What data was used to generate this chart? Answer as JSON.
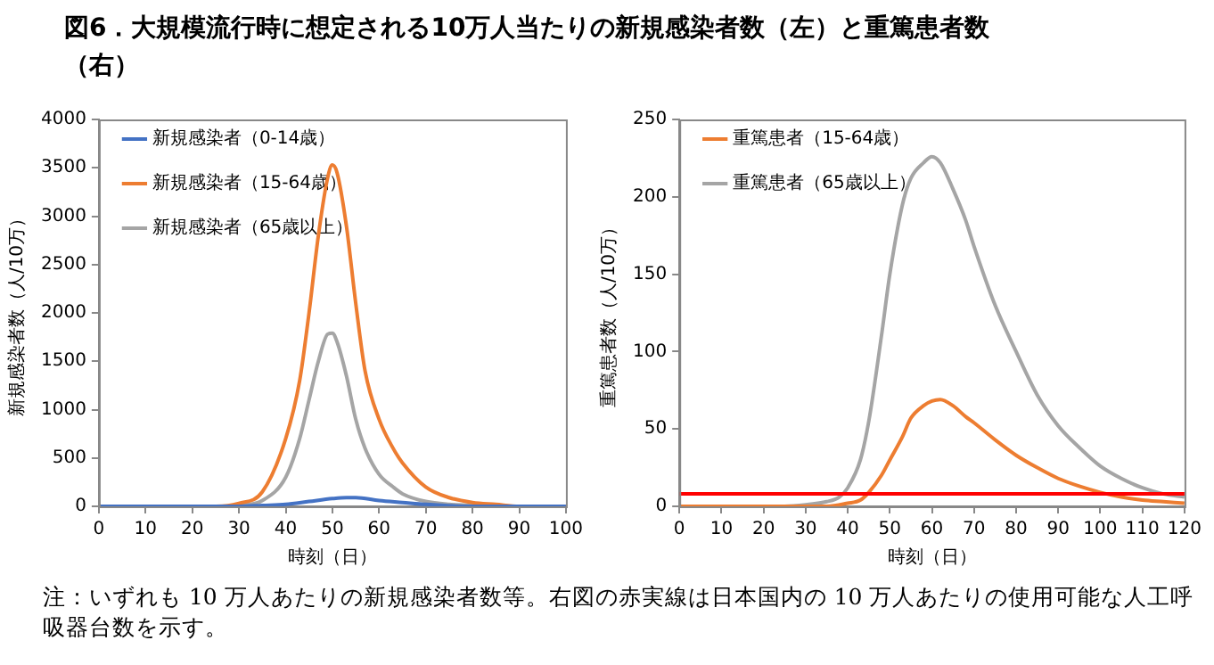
{
  "chart_data": [
    {
      "type": "line",
      "title": "図6．大規模流行時に想定される10万人当たりの新規感染者数（左）と重篤患者数（右）",
      "xlabel": "時刻（日）",
      "ylabel": "新規感染者数（人/10万）",
      "xlim": [
        0,
        100
      ],
      "xticks": [
        0,
        10,
        20,
        30,
        40,
        50,
        60,
        70,
        80,
        90,
        100
      ],
      "ylim": [
        0,
        4000
      ],
      "yticks": [
        0,
        500,
        1000,
        1500,
        2000,
        2500,
        3000,
        3500,
        4000
      ],
      "grid": false,
      "legend": "top left",
      "marker": "none",
      "line_style": "solid",
      "series": [
        {
          "name": "新規感染者（0-14歳）",
          "color": "#4472c4",
          "x": [
            0,
            30,
            35,
            40,
            45,
            50,
            53,
            55,
            60,
            65,
            70,
            80,
            90,
            100
          ],
          "values": [
            0,
            0,
            10,
            20,
            50,
            80,
            90,
            90,
            60,
            40,
            20,
            0,
            0,
            0
          ]
        },
        {
          "name": "新規感染者（15-64歳）",
          "color": "#ed7d31",
          "x": [
            0,
            25,
            30,
            35,
            40,
            43,
            45,
            47,
            49,
            50,
            51,
            53,
            55,
            57,
            60,
            63,
            65,
            70,
            75,
            80,
            85,
            90,
            100
          ],
          "values": [
            0,
            0,
            30,
            150,
            700,
            1300,
            2000,
            2800,
            3400,
            3530,
            3450,
            2900,
            2100,
            1400,
            900,
            600,
            450,
            200,
            90,
            40,
            20,
            0,
            0
          ]
        },
        {
          "name": "新規感染者（65歳以上）",
          "color": "#a5a5a5",
          "x": [
            0,
            25,
            30,
            35,
            40,
            43,
            45,
            47,
            49,
            50,
            51,
            53,
            55,
            57,
            60,
            63,
            65,
            70,
            75,
            80,
            90,
            100
          ],
          "values": [
            0,
            0,
            10,
            60,
            300,
            700,
            1100,
            1500,
            1780,
            1790,
            1700,
            1350,
            900,
            600,
            330,
            200,
            130,
            50,
            20,
            10,
            0,
            0
          ]
        }
      ]
    },
    {
      "type": "line",
      "xlabel": "時刻（日）",
      "ylabel": "重篤患者数（人/10万）",
      "xlim": [
        0,
        120
      ],
      "xticks": [
        0,
        10,
        20,
        30,
        40,
        50,
        60,
        70,
        80,
        90,
        100,
        110,
        120
      ],
      "ylim": [
        0,
        250
      ],
      "yticks": [
        0,
        50,
        100,
        150,
        200,
        250
      ],
      "grid": false,
      "legend": "top left",
      "marker": "none",
      "line_style": "solid",
      "annotations": [
        "注：いずれも 10 万人あたりの新規感染者数等。右図の赤実線は日本国内の 10 万人あたりの使用可能な人工呼吸器台数を示す。"
      ],
      "ref_lines": [
        {
          "axis": "y",
          "value": 8,
          "color": "#ff0000",
          "line_style": "solid"
        }
      ],
      "series": [
        {
          "name": "重篤患者（15-64歳）",
          "color": "#ed7d31",
          "x": [
            0,
            30,
            35,
            40,
            43,
            45,
            48,
            50,
            53,
            55,
            58,
            60,
            62,
            65,
            68,
            70,
            75,
            80,
            85,
            90,
            95,
            100,
            105,
            110,
            115,
            120
          ],
          "values": [
            0,
            0,
            0,
            2,
            4,
            9,
            20,
            30,
            45,
            57,
            65,
            68,
            69,
            65,
            58,
            54,
            43,
            33,
            25,
            18,
            13,
            9,
            6,
            4,
            3,
            2
          ]
        },
        {
          "name": "重篤患者（65歳以上）",
          "color": "#a5a5a5",
          "x": [
            0,
            25,
            30,
            35,
            38,
            40,
            43,
            45,
            48,
            50,
            53,
            55,
            58,
            60,
            62,
            65,
            68,
            70,
            75,
            80,
            85,
            90,
            95,
            100,
            105,
            110,
            115,
            120
          ],
          "values": [
            0,
            0,
            1,
            3,
            6,
            12,
            30,
            55,
            110,
            150,
            195,
            212,
            222,
            226,
            222,
            205,
            185,
            168,
            130,
            100,
            72,
            52,
            38,
            26,
            18,
            12,
            8,
            6
          ]
        }
      ]
    }
  ]
}
